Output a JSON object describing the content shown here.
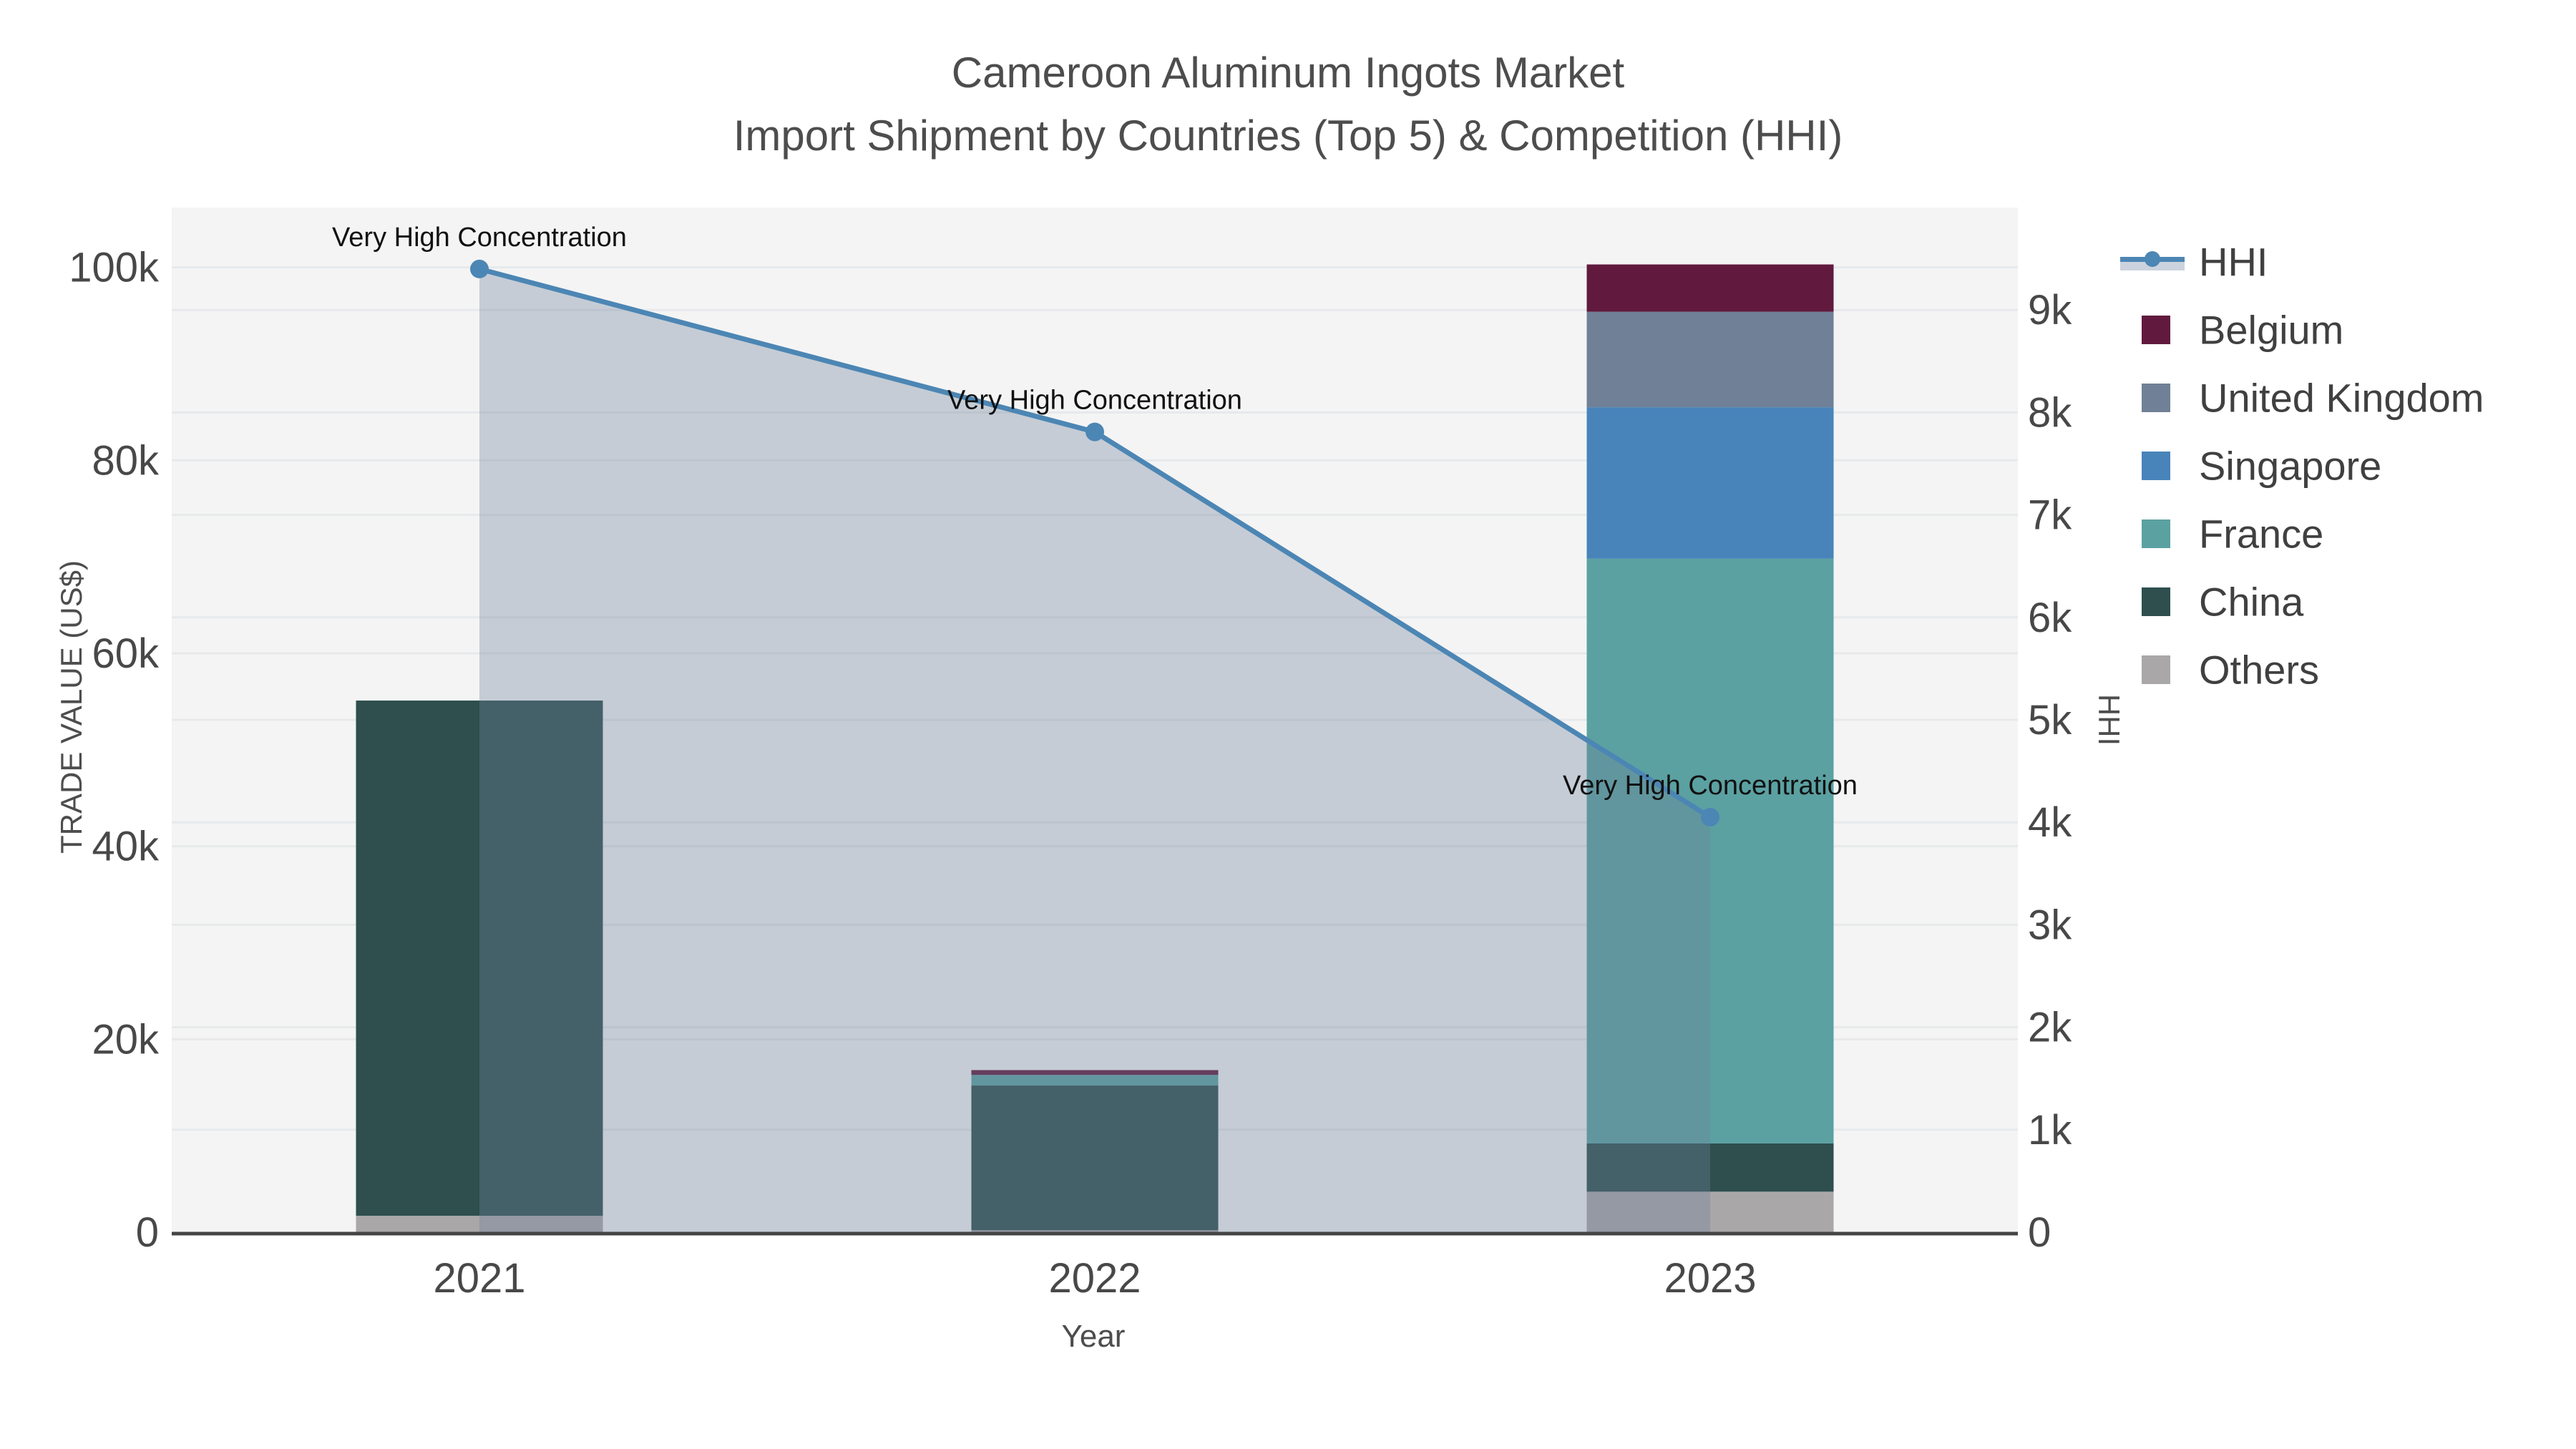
{
  "title": {
    "line1": "Cameroon Aluminum Ingots Market",
    "line2": "Import Shipment by Countries (Top 5) & Competition (HHI)"
  },
  "axes": {
    "x": {
      "title": "Year",
      "categories": [
        "2021",
        "2022",
        "2023"
      ]
    },
    "y_left": {
      "title": "TRADE VALUE (US$)",
      "tick_labels": [
        "0",
        "20k",
        "40k",
        "60k",
        "80k",
        "100k"
      ],
      "tick_values": [
        0,
        20000,
        40000,
        60000,
        80000,
        100000
      ],
      "range": [
        0,
        106200
      ]
    },
    "y_right": {
      "title": "HHI",
      "tick_labels": [
        "0",
        "1k",
        "2k",
        "3k",
        "4k",
        "5k",
        "6k",
        "7k",
        "8k",
        "9k"
      ],
      "tick_values": [
        0,
        1000,
        2000,
        3000,
        4000,
        5000,
        6000,
        7000,
        8000,
        9000
      ],
      "range": [
        0,
        10000
      ]
    }
  },
  "chart_data": {
    "type": "combo-stacked-bar-line",
    "categories": [
      "2021",
      "2022",
      "2023"
    ],
    "bar_value_unit": "US$",
    "series": [
      {
        "name": "Belgium",
        "color": "#611a3e",
        "values": [
          0,
          500,
          4900
        ]
      },
      {
        "name": "United Kingdom",
        "color": "#708096",
        "values": [
          0,
          0,
          9900
        ]
      },
      {
        "name": "Singapore",
        "color": "#4884ba",
        "values": [
          0,
          0,
          15700
        ]
      },
      {
        "name": "France",
        "color": "#5ba1a2",
        "values": [
          0,
          1100,
          60600
        ]
      },
      {
        "name": "China",
        "color": "#2e4f4e",
        "values": [
          53400,
          15000,
          5000
        ]
      },
      {
        "name": "Others",
        "color": "#a9a7a8",
        "values": [
          1700,
          200,
          4200
        ]
      }
    ],
    "stack_order_bottom_up": [
      "Others",
      "China",
      "France",
      "Singapore",
      "United Kingdom",
      "Belgium"
    ],
    "bar_totals": [
      55100,
      16800,
      100300
    ],
    "line": {
      "name": "HHI",
      "color": "#4c86b4",
      "fill_color": "rgba(110,130,155,0.35)",
      "values": [
        9400,
        7810,
        4050
      ],
      "axis": "right"
    },
    "annotations": [
      {
        "text": "Very High Concentration",
        "category": "2021",
        "hhi": 9400
      },
      {
        "text": "Very High Concentration",
        "category": "2022",
        "hhi": 7810
      },
      {
        "text": "Very High Concentration",
        "category": "2023",
        "hhi": 4050
      }
    ],
    "ylim_left": [
      0,
      106200
    ],
    "ylim_right": [
      0,
      10000
    ],
    "grid": true,
    "legend_position": "top-right"
  },
  "legend": {
    "items": [
      "HHI",
      "Belgium",
      "United Kingdom",
      "Singapore",
      "France",
      "China",
      "Others"
    ]
  },
  "colors": {
    "plot_bg": "#f4f4f4",
    "grid": "#e7e9eb",
    "axis_line": "#444444",
    "title_text": "#4d4d4d",
    "tick_text": "#484848",
    "annotation_text": "#111111",
    "legend_band": "#ccd3de"
  }
}
